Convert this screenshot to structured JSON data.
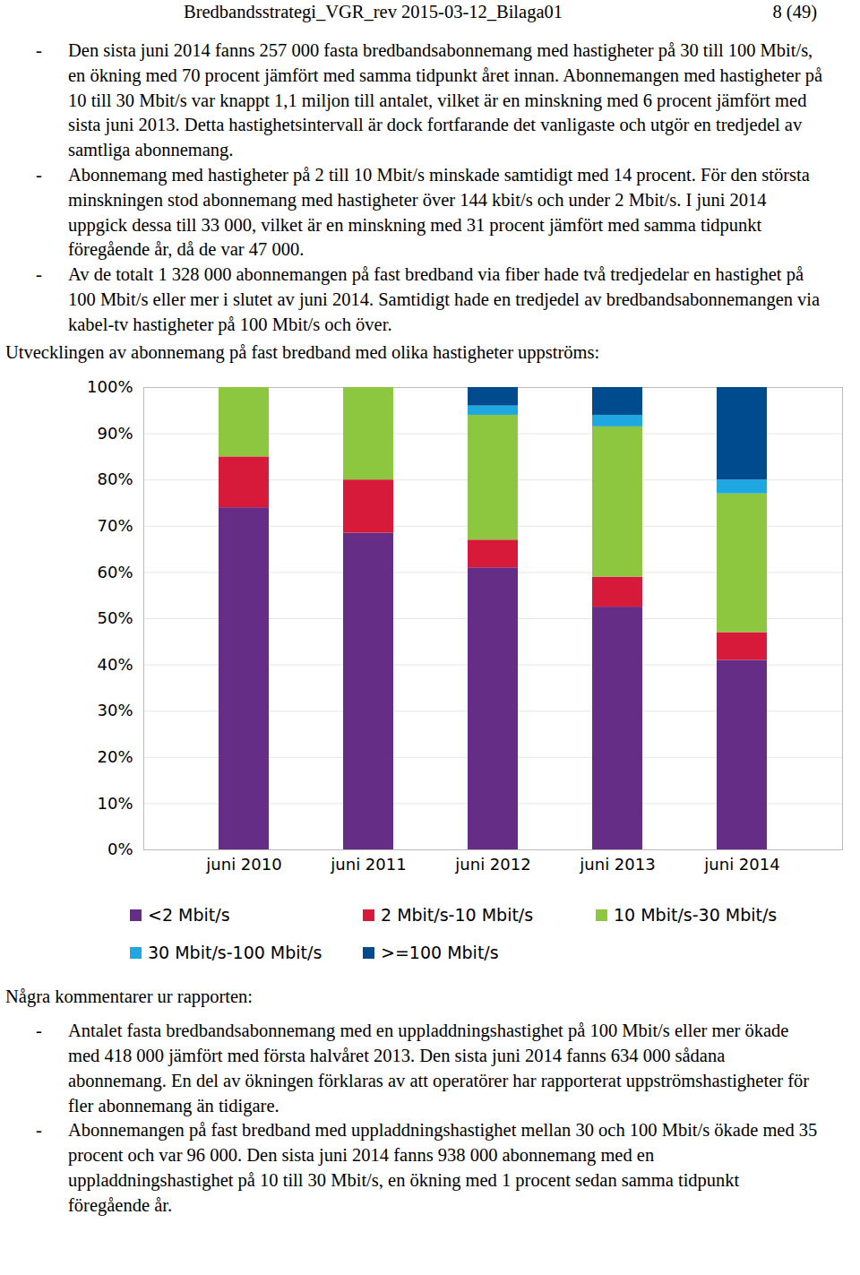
{
  "header": {
    "left": "Bredbandsstrategi_VGR_rev 2015-03-12_Bilaga01",
    "right": "8 (49)"
  },
  "top_bullets": [
    "Den sista juni 2014 fanns 257 000 fasta bredbandsabonnemang med hastigheter på 30 till 100 Mbit/s, en ökning med 70 procent jämfört med samma tidpunkt året innan. Abonnemangen med hastigheter på 10 till 30 Mbit/s var knappt 1,1 miljon till antalet, vilket är en minskning med 6 procent jämfört med sista juni 2013. Detta hastighetsintervall är dock fortfarande det vanligaste och utgör en tredjedel av samtliga abonnemang.",
    "Abonnemang med hastigheter på 2 till 10 Mbit/s minskade samtidigt med 14 procent. För den största minskningen stod abonnemang med hastigheter över 144 kbit/s och under 2 Mbit/s. I juni 2014 uppgick dessa till 33 000, vilket är en minskning med 31 procent jämfört med samma tidpunkt föregående år, då de var 47 000.",
    "Av de totalt 1 328 000 abonnemangen på fast bredband via fiber hade två tredjedelar en hastighet på 100 Mbit/s eller mer i slutet av juni 2014. Samtidigt hade en tredjedel av bredbandsabonnemangen via kabel-tv hastigheter på 100 Mbit/s och över."
  ],
  "chart_intro": "Utvecklingen av abonnemang på fast bredband med olika hastigheter uppströms:",
  "chart_data": {
    "type": "bar",
    "stacked": true,
    "grid": true,
    "categories": [
      "juni 2010",
      "juni 2011",
      "juni 2012",
      "juni 2013",
      "juni 2014"
    ],
    "series": [
      {
        "name": "<2 Mbit/s",
        "color": "#652d86",
        "values": [
          74,
          68.5,
          61,
          52.5,
          41
        ]
      },
      {
        "name": "2 Mbit/s-10 Mbit/s",
        "color": "#d7193a",
        "values": [
          11,
          11.5,
          6,
          6.5,
          6
        ]
      },
      {
        "name": "10 Mbit/s-30 Mbit/s",
        "color": "#8dc63f",
        "values": [
          15,
          20,
          27,
          32.5,
          30
        ]
      },
      {
        "name": "30 Mbit/s-100 Mbit/s",
        "color": "#1ea7e1",
        "values": [
          0,
          0,
          2,
          2.5,
          3
        ]
      },
      {
        "name": ">=100 Mbit/s",
        "color": "#004b8d",
        "values": [
          0,
          0,
          4,
          6,
          20
        ]
      }
    ],
    "ylim": [
      0,
      100
    ],
    "yticks": [
      {
        "value": 0,
        "label": "0%"
      },
      {
        "value": 10,
        "label": "10%"
      },
      {
        "value": 20,
        "label": "20%"
      },
      {
        "value": 30,
        "label": "30%"
      },
      {
        "value": 40,
        "label": "40%"
      },
      {
        "value": 50,
        "label": "50%"
      },
      {
        "value": 60,
        "label": "60%"
      },
      {
        "value": 70,
        "label": "70%"
      },
      {
        "value": 80,
        "label": "80%"
      },
      {
        "value": 90,
        "label": "90%"
      },
      {
        "value": 100,
        "label": "100%"
      }
    ],
    "legend": "bottom"
  },
  "comments_title": "Några kommentarer ur rapporten:",
  "comments": [
    "Antalet fasta bredbandsabonnemang med en uppladdningshastighet på 100 Mbit/s eller mer ökade med 418 000 jämfört med första halvåret 2013. Den sista juni 2014 fanns 634 000 sådana abonnemang. En del av ökningen förklaras av att operatörer har rapporterat uppströmshastigheter för fler abonnemang än tidigare.",
    "Abonnemangen på fast bredband med uppladdningshastighet mellan 30 och 100 Mbit/s ökade med 35 procent och var 96 000. Den sista juni 2014 fanns 938 000 abonnemang med en uppladdningshastighet på 10 till 30 Mbit/s, en ökning med 1 procent sedan samma tidpunkt föregående år."
  ]
}
